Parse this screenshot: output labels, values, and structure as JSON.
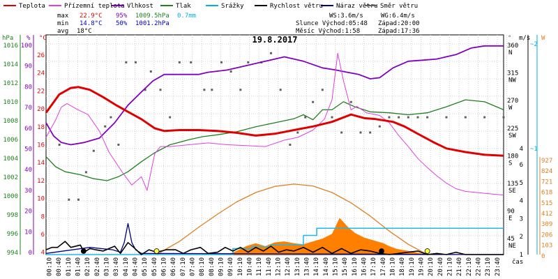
{
  "chart_data": {
    "type": "line",
    "title": "19.8.2017",
    "legend": [
      {
        "label": "Teplota",
        "color": "#e00000"
      },
      {
        "label": "Přízemní teplota",
        "color": "#e040e0"
      },
      {
        "label": "Vlhkost",
        "color": "#8000c0"
      },
      {
        "label": "Tlak",
        "color": "#208020"
      },
      {
        "label": "Srážky",
        "color": "#00b0e0"
      },
      {
        "label": "Rychlost větru",
        "color": "#000000"
      },
      {
        "label": "Náraz větru",
        "color": "#000080"
      },
      {
        "label": "Směr větru",
        "color": "#606060"
      }
    ],
    "stats": {
      "max_label": "max",
      "min_label": "min",
      "avg_label": "avg",
      "max_temp": "22.9°C",
      "max_hum": "95%",
      "max_press": "1009.5hPa",
      "rain": "0.7mm",
      "min_temp": "14.8°C",
      "min_hum": "50%",
      "min_press": "1001.2hPa",
      "avg_temp": "18°C",
      "ws": "WS:3.6m/s",
      "wg": "WG:6.4m/s",
      "sun": "Slunce Východ:05:48",
      "sun_set": "Západ:20:00",
      "moon": "Měsíc  Východ:1:58",
      "moon_set": "Západ:17:36"
    },
    "axes": {
      "hpa_label": "hPa",
      "pct_label": "%",
      "c_label": "°C",
      "deg_label": "°",
      "ms_label": "m/s",
      "w_label": "W",
      "time_label": "čas",
      "hpa_ticks": [
        "1016",
        "1014",
        "1012",
        "1010",
        "1008",
        "1006",
        "1004",
        "1002",
        "1000",
        "998",
        "996",
        "994"
      ],
      "pct_ticks": [
        "100",
        "90",
        "80",
        "70",
        "60",
        "50",
        "40",
        "30",
        "20",
        "10",
        "0"
      ],
      "c_ticks": [
        "26",
        "24",
        "22",
        "20",
        "18",
        "16",
        "14",
        "12",
        "10",
        "8",
        "6",
        "4"
      ],
      "deg_ticks": [
        {
          "v": "360",
          "d": "N"
        },
        {
          "v": "315",
          "d": "NW"
        },
        {
          "v": "270",
          "d": "W"
        },
        {
          "v": "225",
          "d": "SW"
        },
        {
          "v": "180",
          "d": "S"
        },
        {
          "v": "135",
          "d": "SE"
        },
        {
          "v": "90",
          "d": "E"
        },
        {
          "v": "45",
          "d": "NE"
        }
      ],
      "ms_ticks": [
        "2",
        "1",
        "6",
        "5",
        "4",
        "3",
        "2",
        "1"
      ],
      "w_ticks": [
        "927",
        "824",
        "721",
        "618",
        "515",
        "412",
        "309",
        "206",
        "103",
        "0"
      ],
      "ms_top": "~2",
      "ms_mid": "~1",
      "ms_mid_left": "4",
      "time_ticks": [
        "00:10",
        "00:40",
        "01:10",
        "01:40",
        "02:10",
        "02:40",
        "03:10",
        "03:40",
        "04:10",
        "04:40",
        "05:10",
        "05:40",
        "06:10",
        "06:40",
        "07:10",
        "07:40",
        "08:10",
        "08:40",
        "09:10",
        "09:40",
        "10:10",
        "10:40",
        "11:10",
        "11:40",
        "12:10",
        "12:40",
        "13:10",
        "13:40",
        "14:10",
        "14:40",
        "15:10",
        "15:40",
        "16:10",
        "16:40",
        "17:10",
        "17:40",
        "18:10",
        "18:40",
        "19:10",
        "19:40",
        "20:10",
        "20:40",
        "21:10",
        "21:40",
        "22:10",
        "22:40",
        "23:10",
        "23:40"
      ]
    },
    "ranges": {
      "temp_c": [
        4,
        28
      ],
      "humidity_pct": [
        0,
        100
      ],
      "pressure_hpa": [
        994,
        1016
      ],
      "wind_dir_deg": [
        0,
        360
      ],
      "wind_ms": [
        0,
        3
      ],
      "solar_w": [
        0,
        927
      ]
    },
    "x_hours": [
      0,
      24
    ],
    "series": {
      "temperature": [
        [
          0,
          19.5
        ],
        [
          0.7,
          21.5
        ],
        [
          1.3,
          22.2
        ],
        [
          1.7,
          22.3
        ],
        [
          2.3,
          22
        ],
        [
          3,
          21.2
        ],
        [
          3.7,
          20.3
        ],
        [
          4.3,
          19.6
        ],
        [
          5,
          18.8
        ],
        [
          5.7,
          17.8
        ],
        [
          6.2,
          17.5
        ],
        [
          7,
          17.6
        ],
        [
          8,
          17.6
        ],
        [
          9,
          17.5
        ],
        [
          10,
          17.3
        ],
        [
          11,
          17
        ],
        [
          12,
          17.2
        ],
        [
          13,
          17.6
        ],
        [
          14,
          18
        ],
        [
          15,
          18.5
        ],
        [
          16,
          19.3
        ],
        [
          16.7,
          18.9
        ],
        [
          17.3,
          18.8
        ],
        [
          18.2,
          18.5
        ],
        [
          18.8,
          18
        ],
        [
          19.5,
          17.2
        ],
        [
          20.3,
          16.3
        ],
        [
          21,
          15.6
        ],
        [
          22,
          15.2
        ],
        [
          23,
          14.9
        ],
        [
          24,
          14.8
        ]
      ],
      "ground_temp": [
        [
          0,
          16.8
        ],
        [
          0.5,
          18.7
        ],
        [
          0.8,
          20.1
        ],
        [
          1.1,
          20.5
        ],
        [
          1.6,
          19.9
        ],
        [
          2.2,
          19.3
        ],
        [
          2.8,
          17.5
        ],
        [
          3.3,
          15.2
        ],
        [
          4,
          13
        ],
        [
          4.5,
          11.6
        ],
        [
          5,
          12.5
        ],
        [
          5.3,
          11
        ],
        [
          5.7,
          15
        ],
        [
          6,
          15.8
        ],
        [
          6.5,
          15.8
        ],
        [
          7.5,
          16
        ],
        [
          8.5,
          16.2
        ],
        [
          9.5,
          16
        ],
        [
          10.5,
          15.9
        ],
        [
          11.5,
          15.8
        ],
        [
          12.5,
          16.5
        ],
        [
          13.2,
          16.8
        ],
        [
          14,
          17.6
        ],
        [
          14.6,
          18.8
        ],
        [
          15,
          20.9
        ],
        [
          15.3,
          26
        ],
        [
          15.6,
          23
        ],
        [
          16,
          19.8
        ],
        [
          16.3,
          20.2
        ],
        [
          16.8,
          19.5
        ],
        [
          17.5,
          19.2
        ],
        [
          18,
          18.4
        ],
        [
          18.5,
          17
        ],
        [
          19,
          15.8
        ],
        [
          19.5,
          14.5
        ],
        [
          20,
          13.5
        ],
        [
          20.5,
          12.6
        ],
        [
          21,
          11.8
        ],
        [
          21.5,
          11.2
        ],
        [
          22,
          10.9
        ],
        [
          23,
          10.7
        ],
        [
          24,
          10.5
        ]
      ],
      "humidity": [
        [
          0,
          60
        ],
        [
          0.4,
          54
        ],
        [
          0.8,
          51
        ],
        [
          1.3,
          50
        ],
        [
          2,
          51
        ],
        [
          2.8,
          53
        ],
        [
          3.6,
          60
        ],
        [
          4.3,
          68
        ],
        [
          5,
          74
        ],
        [
          5.6,
          79
        ],
        [
          6.2,
          82
        ],
        [
          7,
          82
        ],
        [
          8,
          82
        ],
        [
          8.5,
          83
        ],
        [
          9.5,
          84
        ],
        [
          10.5,
          86
        ],
        [
          11.5,
          88
        ],
        [
          12.5,
          90
        ],
        [
          13.5,
          88
        ],
        [
          14.5,
          85
        ],
        [
          15.2,
          84
        ],
        [
          15.8,
          83
        ],
        [
          16.4,
          82
        ],
        [
          17,
          80
        ],
        [
          17.5,
          80.5
        ],
        [
          18.2,
          85
        ],
        [
          19,
          88
        ],
        [
          19.8,
          88.5
        ],
        [
          20.5,
          89
        ],
        [
          21.5,
          91
        ],
        [
          22.3,
          94
        ],
        [
          23,
          95
        ],
        [
          24,
          95
        ]
      ],
      "pressure": [
        [
          0,
          1003.8
        ],
        [
          0.5,
          1002.8
        ],
        [
          1,
          1002.3
        ],
        [
          1.8,
          1002
        ],
        [
          2.5,
          1001.6
        ],
        [
          3.2,
          1001.4
        ],
        [
          3.8,
          1001.8
        ],
        [
          4.3,
          1002.3
        ],
        [
          5,
          1003.3
        ],
        [
          5.7,
          1004.2
        ],
        [
          6.5,
          1005
        ],
        [
          7.5,
          1005.5
        ],
        [
          8.2,
          1005.8
        ],
        [
          9,
          1006
        ],
        [
          10,
          1006.3
        ],
        [
          11,
          1006.8
        ],
        [
          12,
          1007.2
        ],
        [
          13,
          1007.6
        ],
        [
          13.5,
          1008
        ],
        [
          14,
          1007.5
        ],
        [
          14.5,
          1008.5
        ],
        [
          15,
          1008.5
        ],
        [
          15.6,
          1009.3
        ],
        [
          16.2,
          1008.8
        ],
        [
          17,
          1008.3
        ],
        [
          18,
          1008.2
        ],
        [
          19,
          1008
        ],
        [
          20,
          1008.2
        ],
        [
          21,
          1008.8
        ],
        [
          22,
          1009.5
        ],
        [
          23,
          1009.3
        ],
        [
          24,
          1008.5
        ]
      ],
      "rain_ms": [
        [
          0,
          0
        ],
        [
          9.8,
          0
        ],
        [
          9.8,
          0.25
        ],
        [
          10.8,
          0.25
        ],
        [
          10.8,
          0.33
        ],
        [
          11.8,
          0.33
        ],
        [
          11.8,
          0.4
        ],
        [
          13.5,
          0.4
        ],
        [
          13.5,
          0.8
        ],
        [
          14.2,
          0.8
        ],
        [
          14.2,
          1.1
        ],
        [
          24,
          1.1
        ]
      ],
      "wind_speed": [
        [
          0,
          0.2
        ],
        [
          0.3,
          0.3
        ],
        [
          0.6,
          0.3
        ],
        [
          1,
          0.55
        ],
        [
          1.3,
          0.3
        ],
        [
          1.8,
          0.4
        ],
        [
          2,
          0.1
        ],
        [
          2.3,
          0.25
        ],
        [
          2.6,
          0.2
        ],
        [
          3,
          0.15
        ],
        [
          3.3,
          0.25
        ],
        [
          3.6,
          0.35
        ],
        [
          3.9,
          0.05
        ],
        [
          4.3,
          0.5
        ],
        [
          4.6,
          0.3
        ],
        [
          5,
          0
        ],
        [
          5.4,
          0.2
        ],
        [
          5.8,
          0.1
        ],
        [
          6.3,
          0.2
        ],
        [
          6.8,
          0.2
        ],
        [
          7.2,
          0.05
        ],
        [
          7.6,
          0.2
        ],
        [
          8.1,
          0.3
        ],
        [
          8.5,
          0.05
        ],
        [
          9,
          0.1
        ],
        [
          9.4,
          0.3
        ],
        [
          9.8,
          0.15
        ],
        [
          10.2,
          0.3
        ],
        [
          10.6,
          0.1
        ],
        [
          11,
          0.3
        ],
        [
          11.4,
          0.15
        ],
        [
          11.8,
          0.35
        ],
        [
          12.2,
          0.1
        ],
        [
          12.6,
          0.2
        ],
        [
          13,
          0.15
        ],
        [
          13.5,
          0.3
        ],
        [
          14,
          0.1
        ],
        [
          14.5,
          0.3
        ],
        [
          15,
          0.05
        ],
        [
          15.5,
          0.25
        ],
        [
          16,
          0.05
        ],
        [
          16.5,
          0.2
        ],
        [
          17,
          0.15
        ],
        [
          17.5,
          0.05
        ],
        [
          18,
          0
        ],
        [
          18.5,
          0.05
        ],
        [
          19,
          0.1
        ],
        [
          19.5,
          0.15
        ],
        [
          20,
          0
        ],
        [
          20.5,
          0.05
        ],
        [
          21,
          0
        ],
        [
          21.5,
          0.1
        ],
        [
          22,
          0
        ],
        [
          24,
          0
        ]
      ],
      "wind_gust": [
        [
          0,
          0.05
        ],
        [
          2.3,
          0.3
        ],
        [
          3.5,
          0.2
        ],
        [
          3.9,
          0.1
        ],
        [
          4.1,
          0.5
        ],
        [
          4.3,
          1.3
        ],
        [
          4.5,
          0.5
        ],
        [
          4.7,
          0.2
        ],
        [
          5,
          0.05
        ],
        [
          24,
          0
        ]
      ],
      "solar_w": [
        [
          5.8,
          0
        ],
        [
          7,
          140
        ],
        [
          8,
          290
        ],
        [
          9,
          430
        ],
        [
          10,
          560
        ],
        [
          11,
          660
        ],
        [
          12,
          725
        ],
        [
          13,
          750
        ],
        [
          14,
          730
        ],
        [
          15,
          660
        ],
        [
          16,
          550
        ],
        [
          17,
          410
        ],
        [
          18,
          250
        ],
        [
          19,
          110
        ],
        [
          20,
          0
        ]
      ],
      "solar_actual_w": [
        [
          9.5,
          0
        ],
        [
          10,
          40
        ],
        [
          10.5,
          90
        ],
        [
          11,
          120
        ],
        [
          11.5,
          90
        ],
        [
          12,
          130
        ],
        [
          12.5,
          140
        ],
        [
          13,
          120
        ],
        [
          13.5,
          110
        ],
        [
          14,
          140
        ],
        [
          14.5,
          170
        ],
        [
          15,
          220
        ],
        [
          15.4,
          390
        ],
        [
          15.8,
          300
        ],
        [
          16.2,
          230
        ],
        [
          16.7,
          180
        ],
        [
          17.2,
          150
        ],
        [
          17.7,
          120
        ],
        [
          18,
          90
        ],
        [
          18.4,
          60
        ],
        [
          19,
          40
        ],
        [
          19.5,
          20
        ],
        [
          20,
          0
        ]
      ],
      "wind_dir_points": [
        [
          0.7,
          180
        ],
        [
          1.2,
          90
        ],
        [
          1.7,
          90
        ],
        [
          2.1,
          135
        ],
        [
          2.5,
          170
        ],
        [
          3.1,
          210
        ],
        [
          3.4,
          225
        ],
        [
          3.8,
          180
        ],
        [
          4.2,
          315
        ],
        [
          4.7,
          315
        ],
        [
          5.2,
          270
        ],
        [
          5.5,
          300
        ],
        [
          6,
          270
        ],
        [
          6.5,
          225
        ],
        [
          7,
          315
        ],
        [
          7.6,
          315
        ],
        [
          8.3,
          270
        ],
        [
          8.7,
          270
        ],
        [
          9.2,
          315
        ],
        [
          9.7,
          300
        ],
        [
          10.2,
          270
        ],
        [
          10.6,
          315
        ],
        [
          11.3,
          315
        ],
        [
          11.8,
          330
        ],
        [
          12.3,
          270
        ],
        [
          12.8,
          180
        ],
        [
          13.2,
          200
        ],
        [
          13.6,
          225
        ],
        [
          14,
          250
        ],
        [
          14.5,
          270
        ],
        [
          15,
          225
        ],
        [
          15.5,
          200
        ],
        [
          16,
          250
        ],
        [
          16.5,
          200
        ],
        [
          17,
          200
        ],
        [
          17.5,
          210
        ],
        [
          18,
          225
        ],
        [
          18.5,
          225
        ],
        [
          19,
          225
        ],
        [
          19.5,
          225
        ],
        [
          20,
          225
        ],
        [
          21,
          225
        ],
        [
          22,
          225
        ],
        [
          23,
          225
        ],
        [
          24,
          225
        ]
      ],
      "sun_rise_h": 5.8,
      "sun_set_h": 20.0,
      "moon_rise_h": 1.97,
      "moon_set_h": 17.6
    }
  }
}
